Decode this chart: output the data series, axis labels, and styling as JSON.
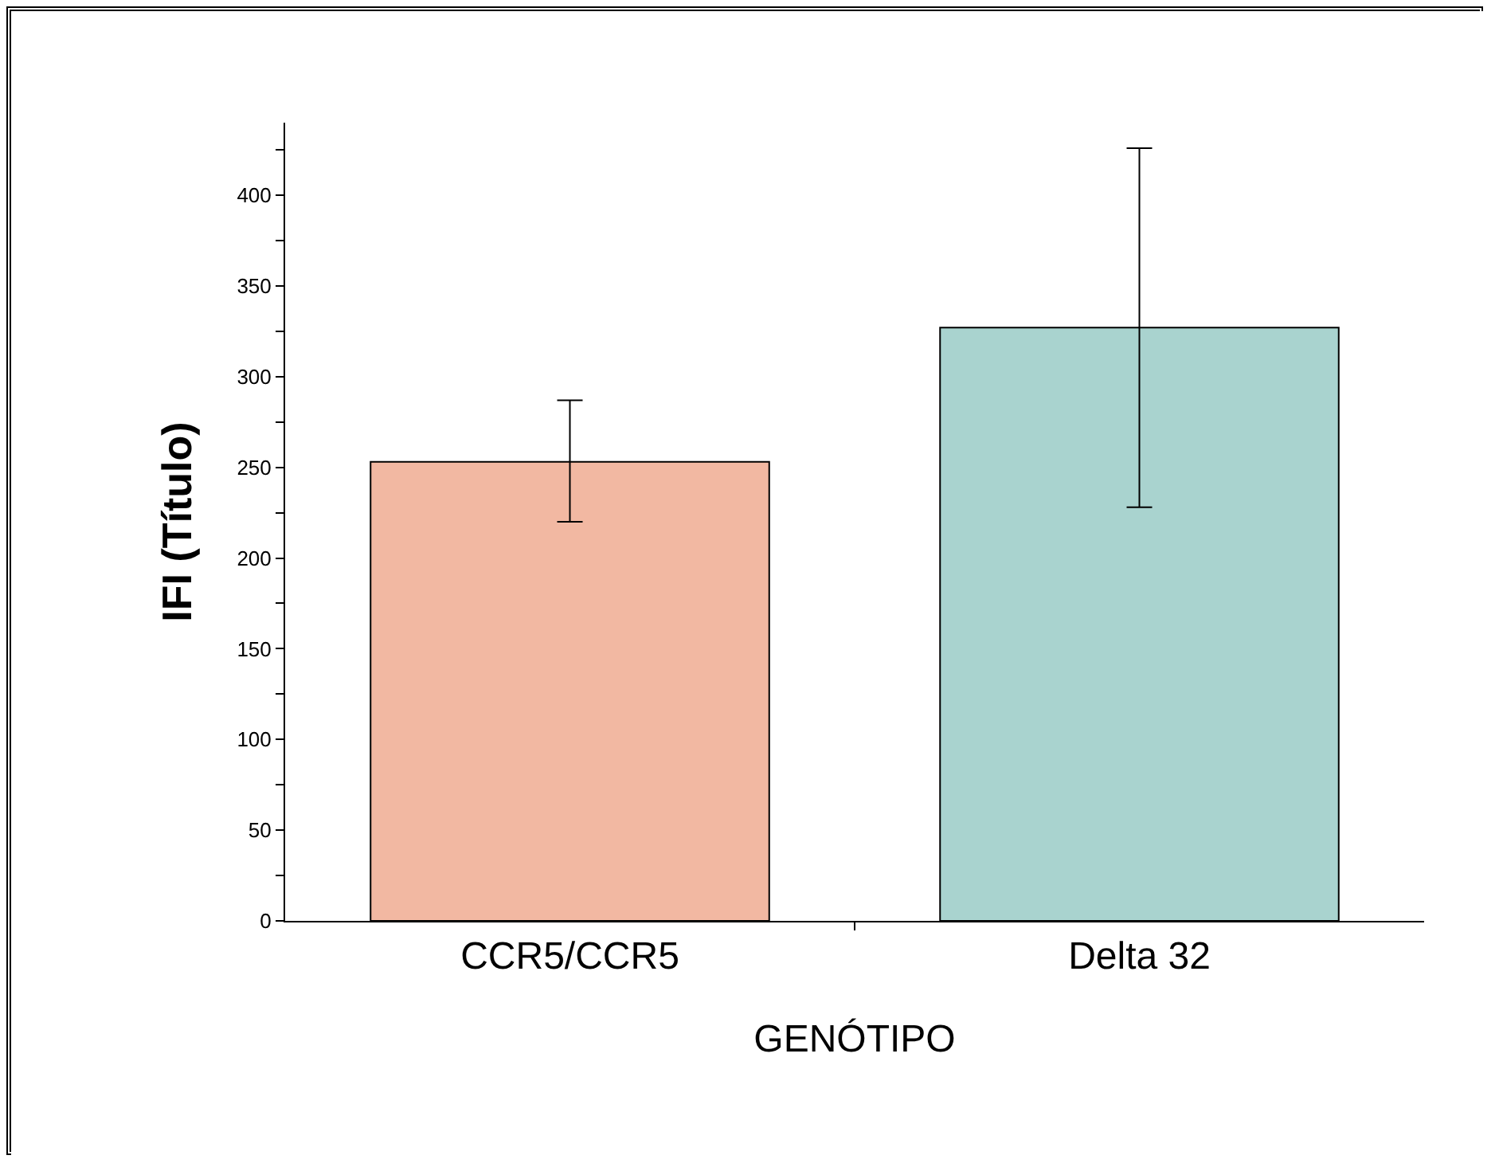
{
  "chart_data": {
    "type": "bar",
    "xlabel": "GENÓTIPO",
    "ylabel": "IFI (Título)",
    "categories": [
      "CCR5/CCR5",
      "Delta 32"
    ],
    "values": [
      253,
      327
    ],
    "colors": [
      "#f2b8a2",
      "#a9d3cf"
    ],
    "errors": [
      [
        220,
        287
      ],
      [
        228,
        426
      ]
    ],
    "ylim": [
      0,
      440
    ],
    "yticks": [
      0,
      {
        "value": 25,
        "label": null
      },
      50,
      {
        "value": 75,
        "label": null
      },
      100,
      {
        "value": 125,
        "label": null
      },
      150,
      {
        "value": 175,
        "label": null
      },
      200,
      {
        "value": 225,
        "label": null
      },
      250,
      {
        "value": 275,
        "label": null
      },
      300,
      {
        "value": 325,
        "label": null
      },
      350,
      {
        "value": 375,
        "label": null
      },
      400,
      {
        "value": 425,
        "label": null
      }
    ],
    "grid": false
  }
}
